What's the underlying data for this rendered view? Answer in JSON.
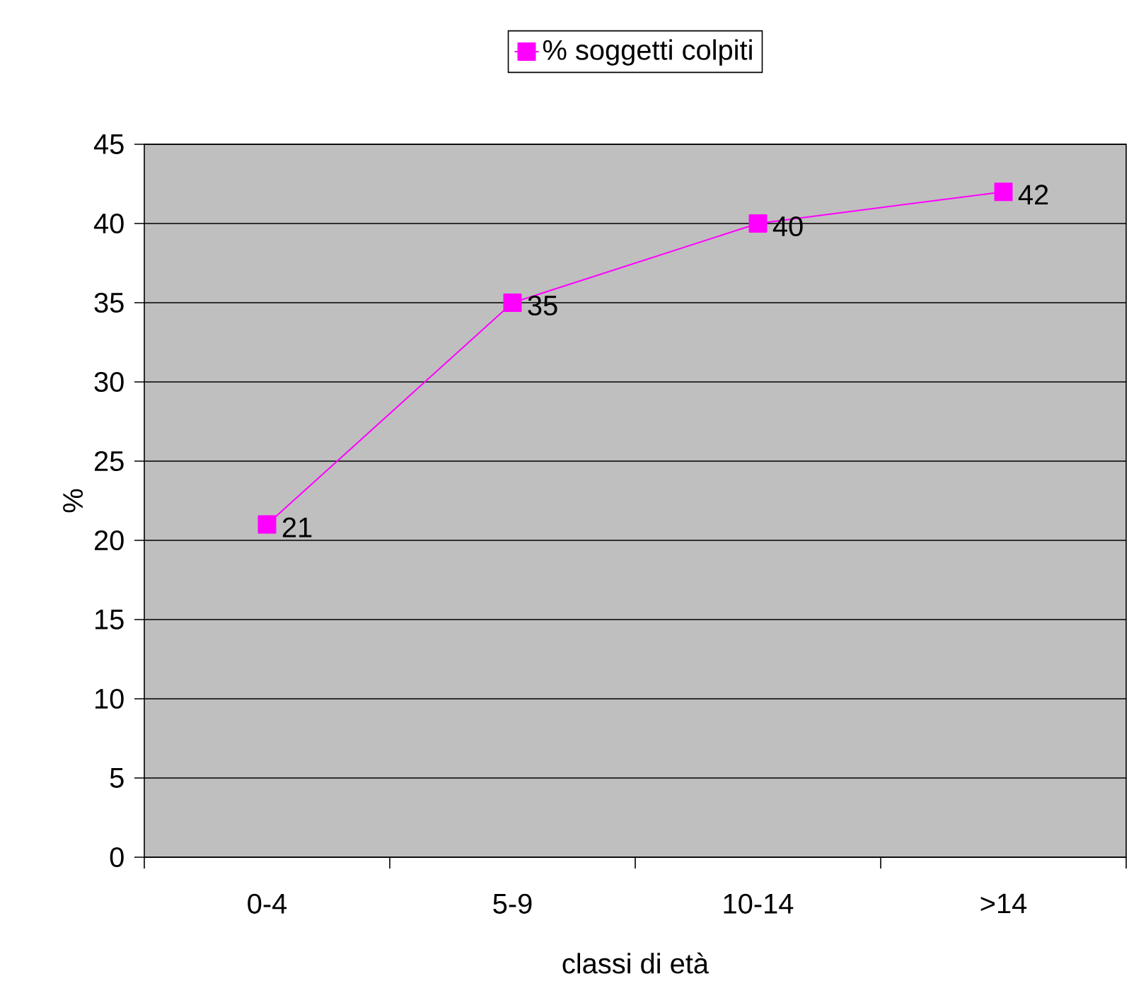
{
  "chart_data": {
    "type": "line",
    "xlabel": "classi di età",
    "ylabel": "%",
    "categories": [
      "0-4",
      "5-9",
      "10-14",
      ">14"
    ],
    "series": [
      {
        "name": "% soggetti colpiti",
        "color": "#ff00ff",
        "values": [
          21,
          35,
          40,
          42
        ]
      }
    ],
    "ylim": [
      0,
      45
    ],
    "yticks": [
      0,
      5,
      10,
      15,
      20,
      25,
      30,
      35,
      40,
      45
    ],
    "grid": "y",
    "legend": "top",
    "marker": "square",
    "line_style": "solid",
    "data_labels": true
  }
}
